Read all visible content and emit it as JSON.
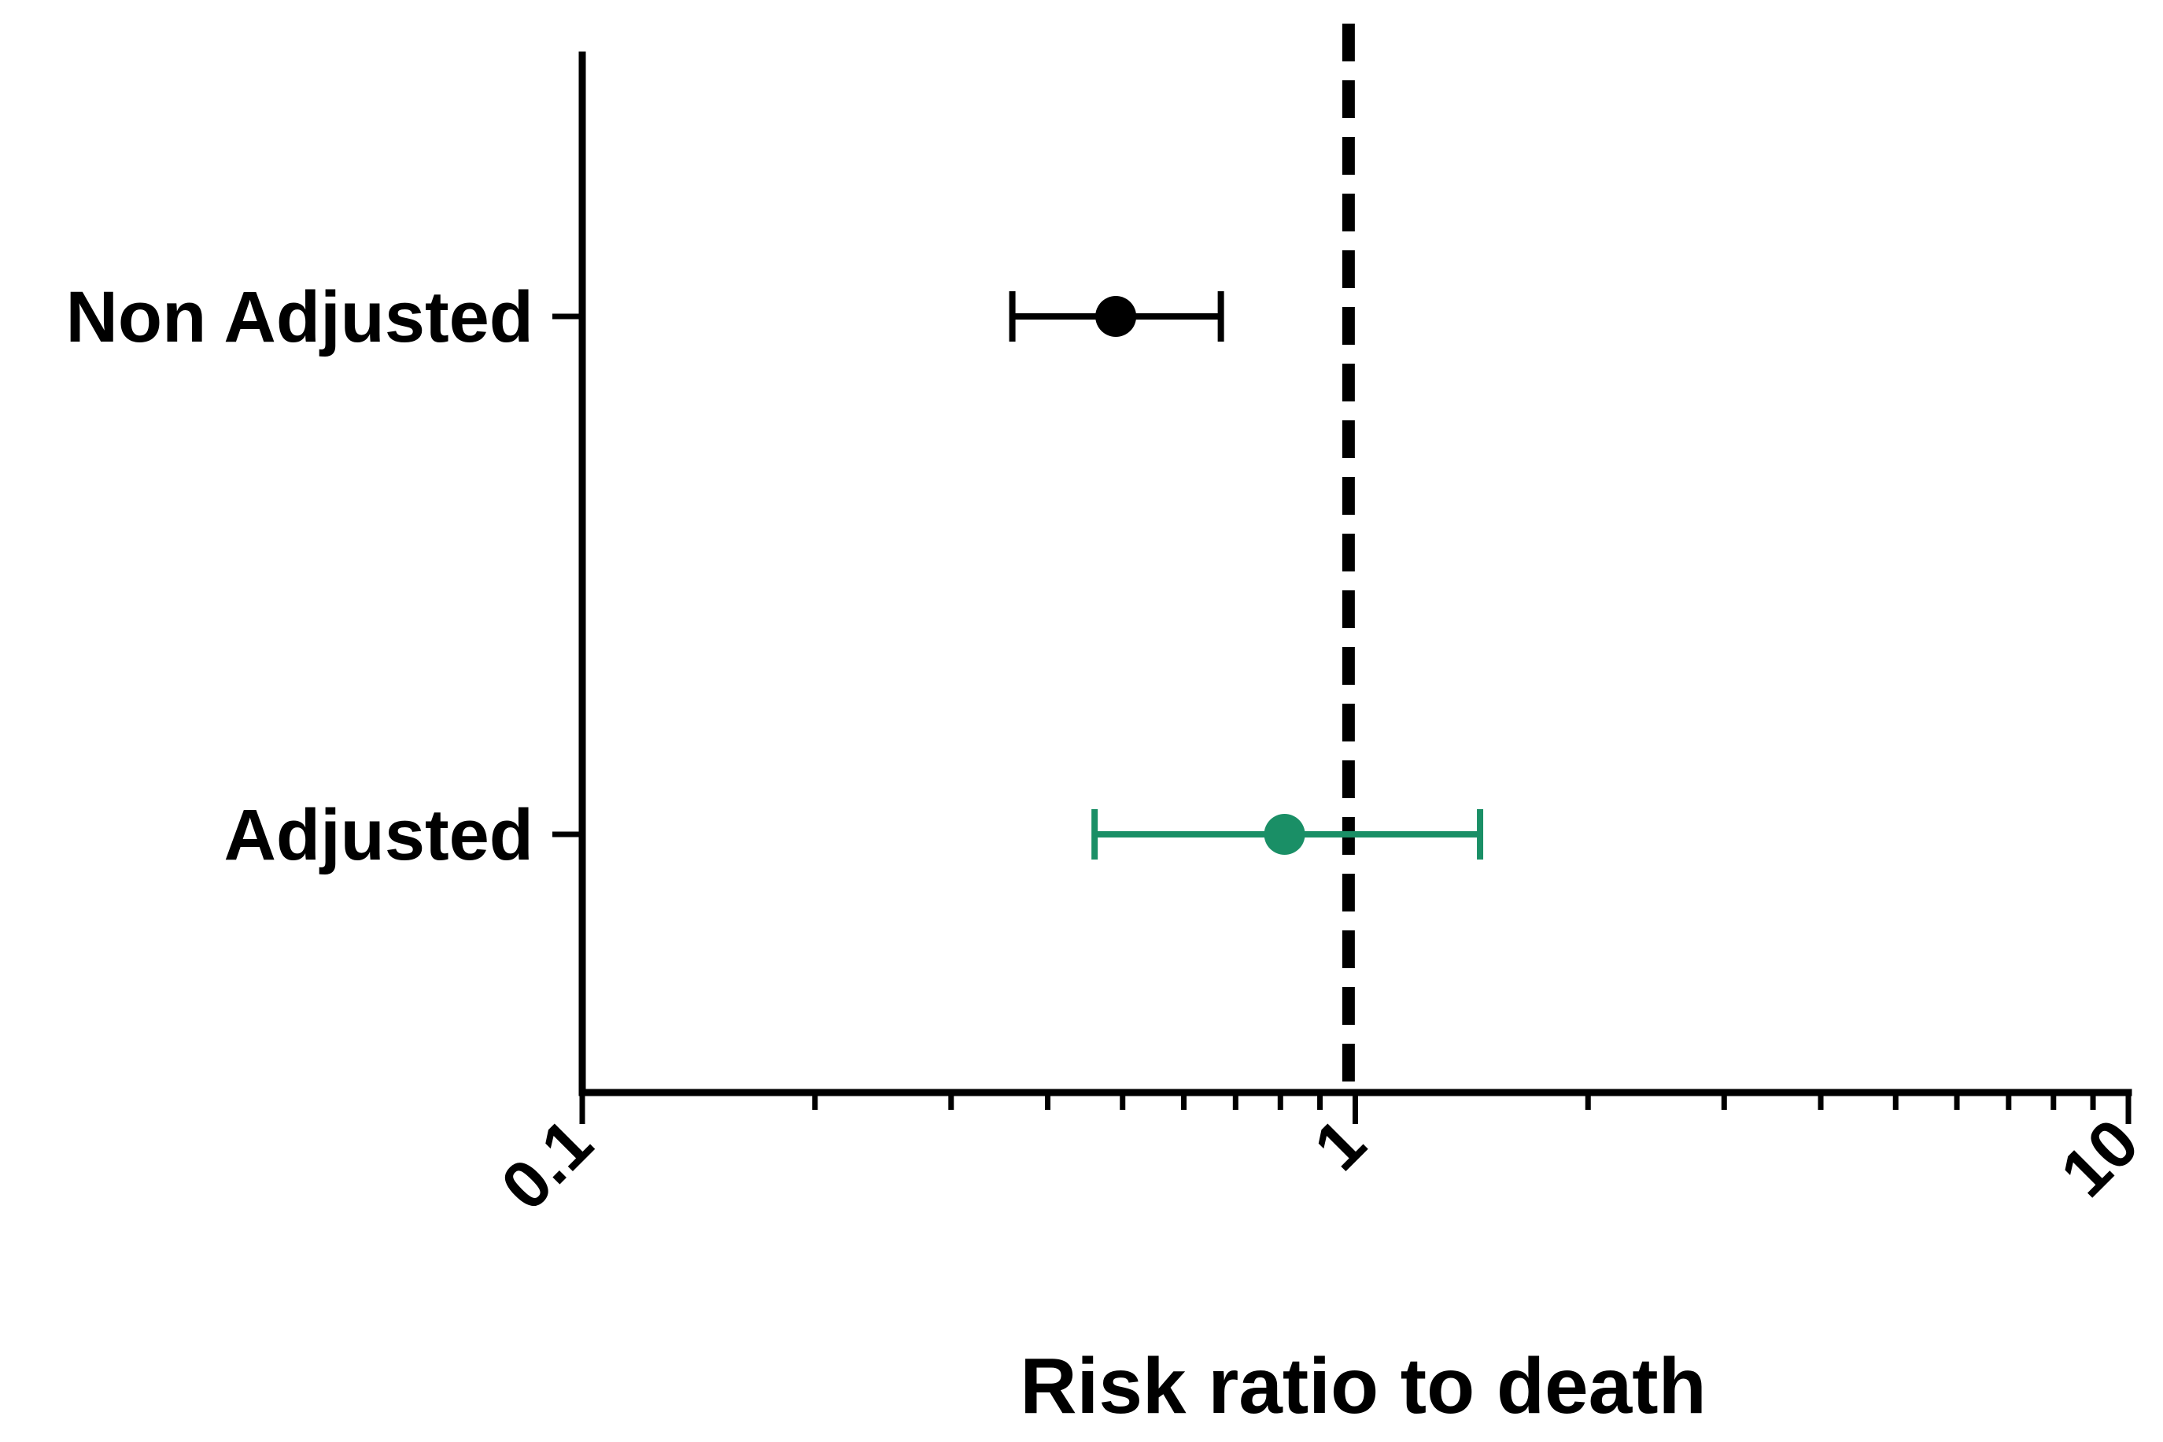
{
  "chart_data": {
    "type": "scatter",
    "subtype": "forest-plot",
    "title": "",
    "xlabel": "Risk ratio to death",
    "ylabel": "",
    "x_scale": "log",
    "xlim": [
      0.1,
      10
    ],
    "x_ticks": [
      {
        "value": 0.1,
        "label": "0.1"
      },
      {
        "value": 1,
        "label": "1"
      },
      {
        "value": 10,
        "label": "10"
      }
    ],
    "reference_line": {
      "x": 0.98,
      "style": "dashed",
      "color": "#000000"
    },
    "grid": false,
    "legend": "none",
    "categories": [
      "Non Adjusted",
      "Adjusted"
    ],
    "points": [
      {
        "category": "Non Adjusted",
        "estimate": 0.49,
        "ci_low": 0.36,
        "ci_high": 0.67,
        "color": "#000000"
      },
      {
        "category": "Adjusted",
        "estimate": 0.81,
        "ci_low": 0.46,
        "ci_high": 1.45,
        "color": "#1a8f66"
      }
    ]
  }
}
